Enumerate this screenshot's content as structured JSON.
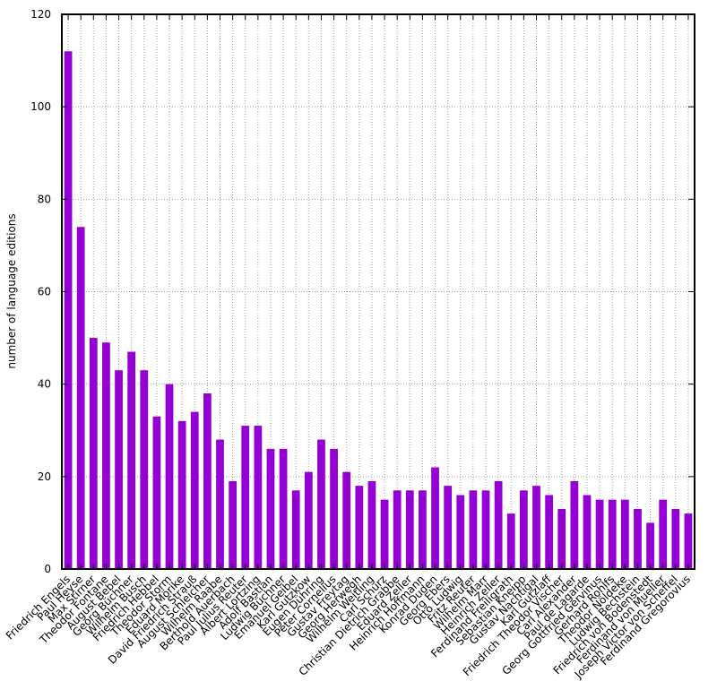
{
  "chart_data": {
    "type": "bar",
    "title": "",
    "xlabel": "",
    "ylabel": "number of language editions",
    "ylim": [
      0,
      120
    ],
    "yticks": [
      0,
      20,
      40,
      60,
      80,
      100,
      120
    ],
    "grid": true,
    "bar_color": "#9400d3",
    "categories": [
      "Friedrich Engels",
      "Paul Heyse",
      "Max Stirner",
      "Theodor Fontane",
      "August Bebel",
      "Georg Büchner",
      "Wilhelm Busch",
      "Friedrich Hebbel",
      "Theodor Storm",
      "Eduard Mörike",
      "David Friedrich Strauß",
      "August Schleicher",
      "Wilhelm Raabe",
      "Berthold Auerbach",
      "Paul Julius Reuter",
      "Albert Lortzing",
      "Adolf Bastian",
      "Ludwig Büchner",
      "Emanuel Geibel",
      "Karl Gutzkow",
      "Eugen Dühring",
      "Peter Cornelius",
      "Gustav Freytag",
      "Georg Herwegh",
      "Wilhelm Weitling",
      "Carl Schurz",
      "Christian Dietrich Grabbe",
      "Eduard Zeller",
      "Heinrich Hoffmann",
      "Konrad Duden",
      "Georg Ebers",
      "Otto Ludwig",
      "Fritz Reuter",
      "Wilhelm Marr",
      "Heinrich Zeller",
      "Ferdinand Freiligrath",
      "Sebastian Kneipp",
      "Gustav Nachtigal",
      "Karl Gutzlaff",
      "Friedrich Theodor Vischer",
      "Carl Alexander",
      "Paul de Lagarde",
      "Georg Gottfried Gervinus",
      "Gerhard Rohlfs",
      "Theodor Nöldeke",
      "Ludwig Bechstein",
      "Friedrich von Bodenstedt",
      "Ferdinand von Mueller",
      "Joseph Victor von Scheffel",
      "Ferdinand Gregorovius"
    ],
    "values": [
      112,
      74,
      50,
      49,
      43,
      47,
      43,
      33,
      40,
      32,
      34,
      38,
      28,
      19,
      31,
      31,
      26,
      26,
      17,
      21,
      28,
      26,
      21,
      18,
      19,
      15,
      17,
      17,
      17,
      22,
      18,
      16,
      17,
      17,
      19,
      12,
      17,
      18,
      16,
      13,
      19,
      16,
      15,
      15,
      15,
      13,
      10,
      15,
      13,
      12
    ]
  }
}
